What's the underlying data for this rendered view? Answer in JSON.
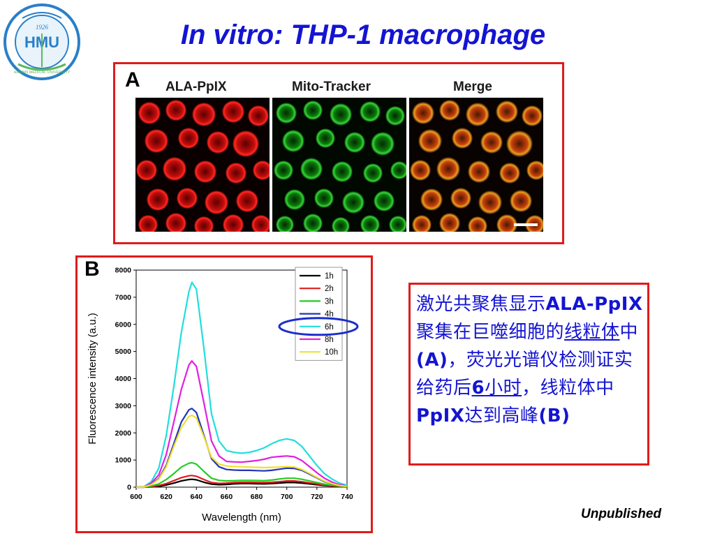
{
  "slide": {
    "title": "In vitro: THP-1 macrophage",
    "footer_note": "Unpublished"
  },
  "logo": {
    "center_text": "HMU",
    "year": "1926",
    "ring_text": "HARBIN MEDICAL UNIVERSITY",
    "ring_color": "#2a7fc8"
  },
  "panel_a": {
    "letter": "A",
    "labels": [
      "ALA-PpIX",
      "Mito-Tracker",
      "Merge"
    ]
  },
  "panel_b": {
    "letter": "B"
  },
  "description": {
    "seg1": "激光共聚焦显示",
    "seg2": "ALA-PpIX",
    "seg3": " 聚集在巨噬细胞的",
    "seg4": "线粒体",
    "seg5": "中",
    "seg6": "(A)",
    "seg7": "，荧光光谱仪检测证实给药后",
    "seg8": "6",
    "seg9": "小时",
    "seg10": "，线粒体中",
    "seg11": "PpIX",
    "seg12": "达到高峰",
    "seg13": "(B)"
  },
  "chart_data": {
    "type": "line",
    "xlabel": "Wavelength (nm)",
    "ylabel": "Fluorescence intensity (a.u.)",
    "xlim": [
      600,
      740
    ],
    "ylim": [
      0,
      8000
    ],
    "xticks": [
      600,
      620,
      640,
      660,
      680,
      700,
      720,
      740
    ],
    "yticks": [
      0,
      1000,
      2000,
      3000,
      4000,
      5000,
      6000,
      7000,
      8000
    ],
    "legend_position": "top-right",
    "highlighted_series": "6h",
    "highlight_color": "#1a2ecc",
    "x": [
      600,
      605,
      610,
      615,
      620,
      625,
      630,
      635,
      637,
      640,
      645,
      650,
      655,
      660,
      665,
      670,
      675,
      680,
      685,
      690,
      695,
      700,
      705,
      710,
      715,
      720,
      725,
      730,
      735,
      740
    ],
    "series": [
      {
        "name": "1h",
        "color": "#000000",
        "values": [
          0,
          0,
          10,
          30,
          80,
          150,
          230,
          280,
          290,
          270,
          180,
          110,
          90,
          100,
          120,
          130,
          130,
          125,
          120,
          130,
          150,
          170,
          170,
          150,
          120,
          90,
          60,
          40,
          20,
          10
        ]
      },
      {
        "name": "2h",
        "color": "#e01b1b",
        "values": [
          0,
          0,
          20,
          60,
          130,
          240,
          350,
          420,
          430,
          400,
          280,
          170,
          140,
          150,
          170,
          180,
          180,
          175,
          170,
          180,
          200,
          230,
          230,
          200,
          160,
          120,
          80,
          50,
          30,
          15
        ]
      },
      {
        "name": "3h",
        "color": "#22cc22",
        "values": [
          0,
          0,
          40,
          120,
          280,
          500,
          740,
          880,
          900,
          850,
          580,
          330,
          250,
          230,
          240,
          250,
          250,
          245,
          240,
          260,
          300,
          330,
          330,
          290,
          230,
          170,
          110,
          70,
          40,
          20
        ]
      },
      {
        "name": "4h",
        "color": "#2233bb",
        "values": [
          0,
          5,
          100,
          320,
          800,
          1600,
          2400,
          2850,
          2900,
          2750,
          1900,
          1050,
          750,
          650,
          630,
          620,
          620,
          610,
          600,
          620,
          660,
          700,
          690,
          620,
          480,
          340,
          200,
          120,
          60,
          30
        ]
      },
      {
        "name": "6h",
        "color": "#22dddd",
        "values": [
          0,
          10,
          200,
          700,
          1900,
          3700,
          5700,
          7200,
          7550,
          7300,
          5100,
          2700,
          1700,
          1350,
          1280,
          1250,
          1280,
          1350,
          1450,
          1600,
          1720,
          1780,
          1720,
          1500,
          1150,
          800,
          500,
          300,
          150,
          70
        ]
      },
      {
        "name": "8h",
        "color": "#e020e0",
        "values": [
          0,
          8,
          150,
          450,
          1200,
          2400,
          3600,
          4500,
          4650,
          4450,
          3100,
          1700,
          1150,
          950,
          930,
          920,
          950,
          980,
          1030,
          1100,
          1130,
          1150,
          1120,
          980,
          760,
          530,
          330,
          190,
          90,
          40
        ]
      },
      {
        "name": "10h",
        "color": "#f0e030",
        "values": [
          0,
          6,
          90,
          290,
          750,
          1500,
          2200,
          2600,
          2650,
          2550,
          1850,
          1100,
          850,
          780,
          760,
          750,
          740,
          730,
          720,
          730,
          740,
          760,
          740,
          650,
          510,
          360,
          220,
          130,
          60,
          30
        ]
      }
    ]
  }
}
